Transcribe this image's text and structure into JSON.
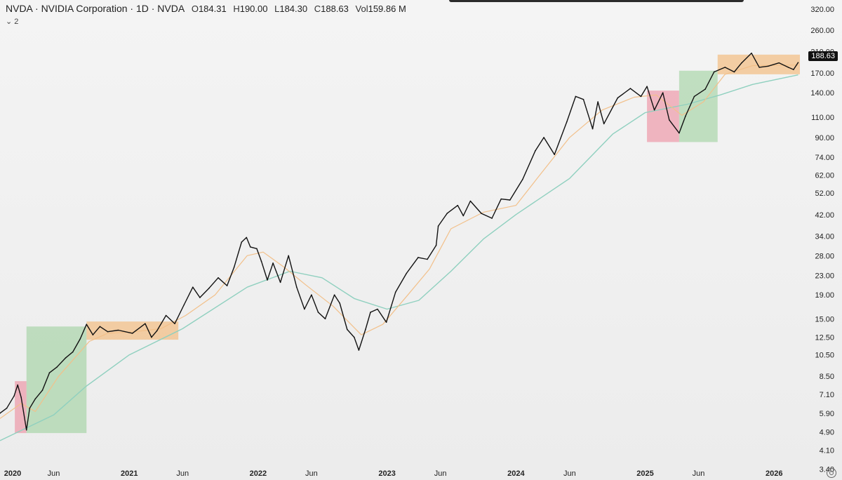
{
  "legend": {
    "title": "NVDA · NVIDIA Corporation · 1D · NVDA",
    "open_key": "O",
    "open": "184.31",
    "high_key": "H",
    "high": "190.00",
    "low_key": "L",
    "low": "184.30",
    "close_key": "C",
    "close": "188.63",
    "vol_key": "Vol",
    "vol": "159.86 M"
  },
  "indicators_toggle": "⌄ 2",
  "last_price_label": "188.63",
  "colors": {
    "candles": "#111111",
    "ma_fast": "#f2c08a",
    "ma_slow": "#8fd0bf",
    "box_red": "rgba(236,130,150,0.55)",
    "box_green": "rgba(150,205,150,0.55)",
    "box_orange": "rgba(244,180,110,0.60)"
  },
  "chart_data": {
    "type": "line",
    "title": "NVDA · NVIDIA Corporation · 1D · NVDA",
    "y_scale": "log",
    "y_ticks": [
      "320.00",
      "260.00",
      "210.00",
      "170.00",
      "140.00",
      "110.00",
      "90.00",
      "74.00",
      "62.00",
      "52.00",
      "42.00",
      "34.00",
      "28.00",
      "23.00",
      "19.00",
      "15.00",
      "12.50",
      "10.50",
      "8.50",
      "7.10",
      "5.90",
      "4.90",
      "4.10",
      "3.40"
    ],
    "x_ticks": [
      "2020",
      "Jun",
      "2021",
      "Jun",
      "2022",
      "Jun",
      "2023",
      "Jun",
      "2024",
      "Jun",
      "2025",
      "Jun",
      "2026"
    ],
    "x_tick_dates": [
      "2020-01-01",
      "2020-06-01",
      "2021-01-01",
      "2021-06-01",
      "2022-01-01",
      "2022-06-01",
      "2023-01-01",
      "2023-06-01",
      "2024-01-01",
      "2024-06-01",
      "2025-01-01",
      "2025-06-01",
      "2026-01-01"
    ],
    "x_range": [
      "2020-01-01",
      "2026-03-15"
    ],
    "y_range": [
      3.05,
      350
    ],
    "grid": false,
    "series": [
      {
        "style": "price",
        "points": [
          [
            "2020-01-01",
            5.9
          ],
          [
            "2020-01-20",
            6.2
          ],
          [
            "2020-02-10",
            7.0
          ],
          [
            "2020-02-20",
            7.8
          ],
          [
            "2020-03-01",
            6.9
          ],
          [
            "2020-03-16",
            5.0
          ],
          [
            "2020-03-25",
            6.2
          ],
          [
            "2020-04-10",
            6.8
          ],
          [
            "2020-04-30",
            7.4
          ],
          [
            "2020-05-20",
            8.8
          ],
          [
            "2020-06-10",
            9.3
          ],
          [
            "2020-07-05",
            10.2
          ],
          [
            "2020-07-25",
            10.8
          ],
          [
            "2020-08-15",
            12.3
          ],
          [
            "2020-09-02",
            14.2
          ],
          [
            "2020-09-20",
            12.8
          ],
          [
            "2020-10-10",
            13.9
          ],
          [
            "2020-11-01",
            13.2
          ],
          [
            "2020-12-01",
            13.4
          ],
          [
            "2021-01-10",
            13.0
          ],
          [
            "2021-02-15",
            14.3
          ],
          [
            "2021-03-05",
            12.5
          ],
          [
            "2021-03-20",
            13.3
          ],
          [
            "2021-04-15",
            15.5
          ],
          [
            "2021-05-10",
            14.3
          ],
          [
            "2021-06-05",
            17.2
          ],
          [
            "2021-06-30",
            20.5
          ],
          [
            "2021-07-20",
            18.5
          ],
          [
            "2021-08-15",
            20.3
          ],
          [
            "2021-09-10",
            22.5
          ],
          [
            "2021-10-05",
            20.8
          ],
          [
            "2021-10-25",
            25.0
          ],
          [
            "2021-11-15",
            32.0
          ],
          [
            "2021-11-29",
            33.5
          ],
          [
            "2021-12-10",
            30.5
          ],
          [
            "2021-12-28",
            30.0
          ],
          [
            "2022-01-10",
            26.5
          ],
          [
            "2022-01-27",
            22.0
          ],
          [
            "2022-02-12",
            26.0
          ],
          [
            "2022-03-05",
            21.5
          ],
          [
            "2022-03-28",
            28.0
          ],
          [
            "2022-04-20",
            20.5
          ],
          [
            "2022-05-12",
            16.5
          ],
          [
            "2022-06-01",
            19.0
          ],
          [
            "2022-06-20",
            16.0
          ],
          [
            "2022-07-10",
            15.0
          ],
          [
            "2022-08-05",
            19.0
          ],
          [
            "2022-08-20",
            17.5
          ],
          [
            "2022-09-10",
            13.5
          ],
          [
            "2022-09-30",
            12.5
          ],
          [
            "2022-10-13",
            11.0
          ],
          [
            "2022-11-01",
            13.5
          ],
          [
            "2022-11-15",
            16.0
          ],
          [
            "2022-12-05",
            16.5
          ],
          [
            "2022-12-30",
            14.5
          ],
          [
            "2023-01-25",
            19.5
          ],
          [
            "2023-02-25",
            23.5
          ],
          [
            "2023-03-30",
            27.5
          ],
          [
            "2023-04-25",
            27.0
          ],
          [
            "2023-05-20",
            31.0
          ],
          [
            "2023-05-26",
            37.5
          ],
          [
            "2023-06-20",
            42.5
          ],
          [
            "2023-07-20",
            46.0
          ],
          [
            "2023-08-05",
            41.5
          ],
          [
            "2023-08-25",
            48.0
          ],
          [
            "2023-09-25",
            42.5
          ],
          [
            "2023-10-25",
            40.5
          ],
          [
            "2023-11-20",
            49.0
          ],
          [
            "2023-12-15",
            48.5
          ],
          [
            "2024-01-20",
            59.5
          ],
          [
            "2024-02-25",
            79.0
          ],
          [
            "2024-03-20",
            90.0
          ],
          [
            "2024-04-19",
            76.0
          ],
          [
            "2024-05-24",
            105.0
          ],
          [
            "2024-06-18",
            135.0
          ],
          [
            "2024-07-10",
            131.0
          ],
          [
            "2024-08-05",
            98.0
          ],
          [
            "2024-08-20",
            128.0
          ],
          [
            "2024-09-06",
            103.0
          ],
          [
            "2024-10-15",
            133.0
          ],
          [
            "2024-11-20",
            146.0
          ],
          [
            "2024-12-20",
            135.0
          ],
          [
            "2025-01-06",
            149.0
          ],
          [
            "2025-01-27",
            118.0
          ],
          [
            "2025-02-20",
            140.0
          ],
          [
            "2025-03-10",
            107.0
          ],
          [
            "2025-04-07",
            94.0
          ],
          [
            "2025-04-25",
            111.0
          ],
          [
            "2025-05-20",
            135.0
          ],
          [
            "2025-06-20",
            145.0
          ],
          [
            "2025-07-15",
            172.0
          ],
          [
            "2025-08-15",
            180.0
          ],
          [
            "2025-09-10",
            172.0
          ],
          [
            "2025-10-01",
            188.0
          ],
          [
            "2025-10-29",
            207.0
          ],
          [
            "2025-11-20",
            180.0
          ],
          [
            "2025-12-15",
            182.0
          ],
          [
            "2026-01-15",
            188.0
          ],
          [
            "2026-02-10",
            180.0
          ],
          [
            "2026-02-25",
            176.0
          ],
          [
            "2026-03-10",
            188.63
          ]
        ]
      },
      {
        "style": "ma_fast",
        "points": [
          [
            "2020-01-01",
            5.6
          ],
          [
            "2020-03-01",
            6.5
          ],
          [
            "2020-04-10",
            6.0
          ],
          [
            "2020-06-15",
            8.5
          ],
          [
            "2020-09-10",
            12.0
          ],
          [
            "2020-11-01",
            13.0
          ],
          [
            "2021-01-15",
            13.2
          ],
          [
            "2021-04-01",
            13.6
          ],
          [
            "2021-06-10",
            15.5
          ],
          [
            "2021-09-01",
            19.0
          ],
          [
            "2021-12-01",
            28.0
          ],
          [
            "2022-01-15",
            29.0
          ],
          [
            "2022-03-15",
            25.0
          ],
          [
            "2022-05-15",
            21.0
          ],
          [
            "2022-08-01",
            17.0
          ],
          [
            "2022-10-20",
            12.8
          ],
          [
            "2022-12-20",
            14.2
          ],
          [
            "2023-03-01",
            19.0
          ],
          [
            "2023-05-01",
            24.5
          ],
          [
            "2023-07-01",
            36.5
          ],
          [
            "2023-10-01",
            43.0
          ],
          [
            "2024-01-01",
            46.0
          ],
          [
            "2024-03-01",
            60.0
          ],
          [
            "2024-06-01",
            90.0
          ],
          [
            "2024-09-01",
            118.0
          ],
          [
            "2024-12-01",
            134.0
          ],
          [
            "2025-02-01",
            137.0
          ],
          [
            "2025-04-15",
            112.0
          ],
          [
            "2025-06-15",
            128.0
          ],
          [
            "2025-08-15",
            168.0
          ],
          [
            "2025-11-01",
            183.0
          ],
          [
            "2026-03-10",
            184.0
          ]
        ]
      },
      {
        "style": "ma_slow",
        "points": [
          [
            "2020-01-01",
            4.5
          ],
          [
            "2020-06-01",
            5.8
          ],
          [
            "2020-09-01",
            7.7
          ],
          [
            "2021-01-01",
            10.5
          ],
          [
            "2021-06-01",
            13.6
          ],
          [
            "2021-12-01",
            20.5
          ],
          [
            "2022-04-01",
            24.0
          ],
          [
            "2022-07-01",
            22.5
          ],
          [
            "2022-10-01",
            18.3
          ],
          [
            "2023-01-01",
            16.5
          ],
          [
            "2023-04-01",
            18.0
          ],
          [
            "2023-07-01",
            24.0
          ],
          [
            "2023-10-01",
            33.0
          ],
          [
            "2024-01-01",
            42.0
          ],
          [
            "2024-06-01",
            60.0
          ],
          [
            "2024-10-01",
            93.0
          ],
          [
            "2025-01-01",
            115.0
          ],
          [
            "2025-05-01",
            125.0
          ],
          [
            "2025-08-01",
            137.0
          ],
          [
            "2025-11-01",
            152.0
          ],
          [
            "2026-03-10",
            167.0
          ]
        ]
      }
    ],
    "boxes": [
      {
        "kind": "red",
        "from": "2020-02-12",
        "to": "2020-03-16",
        "low": 4.85,
        "high": 8.1
      },
      {
        "kind": "green",
        "from": "2020-03-16",
        "to": "2020-09-02",
        "low": 4.85,
        "high": 13.9
      },
      {
        "kind": "orange",
        "from": "2020-09-02",
        "to": "2021-05-20",
        "low": 12.2,
        "high": 14.6
      },
      {
        "kind": "red",
        "from": "2025-01-06",
        "to": "2025-04-07",
        "low": 86.0,
        "high": 143.0
      },
      {
        "kind": "green",
        "from": "2025-04-07",
        "to": "2025-07-25",
        "low": 86.0,
        "high": 174.0
      },
      {
        "kind": "orange",
        "from": "2025-07-25",
        "to": "2026-03-15",
        "low": 168.0,
        "high": 204.0
      }
    ]
  }
}
